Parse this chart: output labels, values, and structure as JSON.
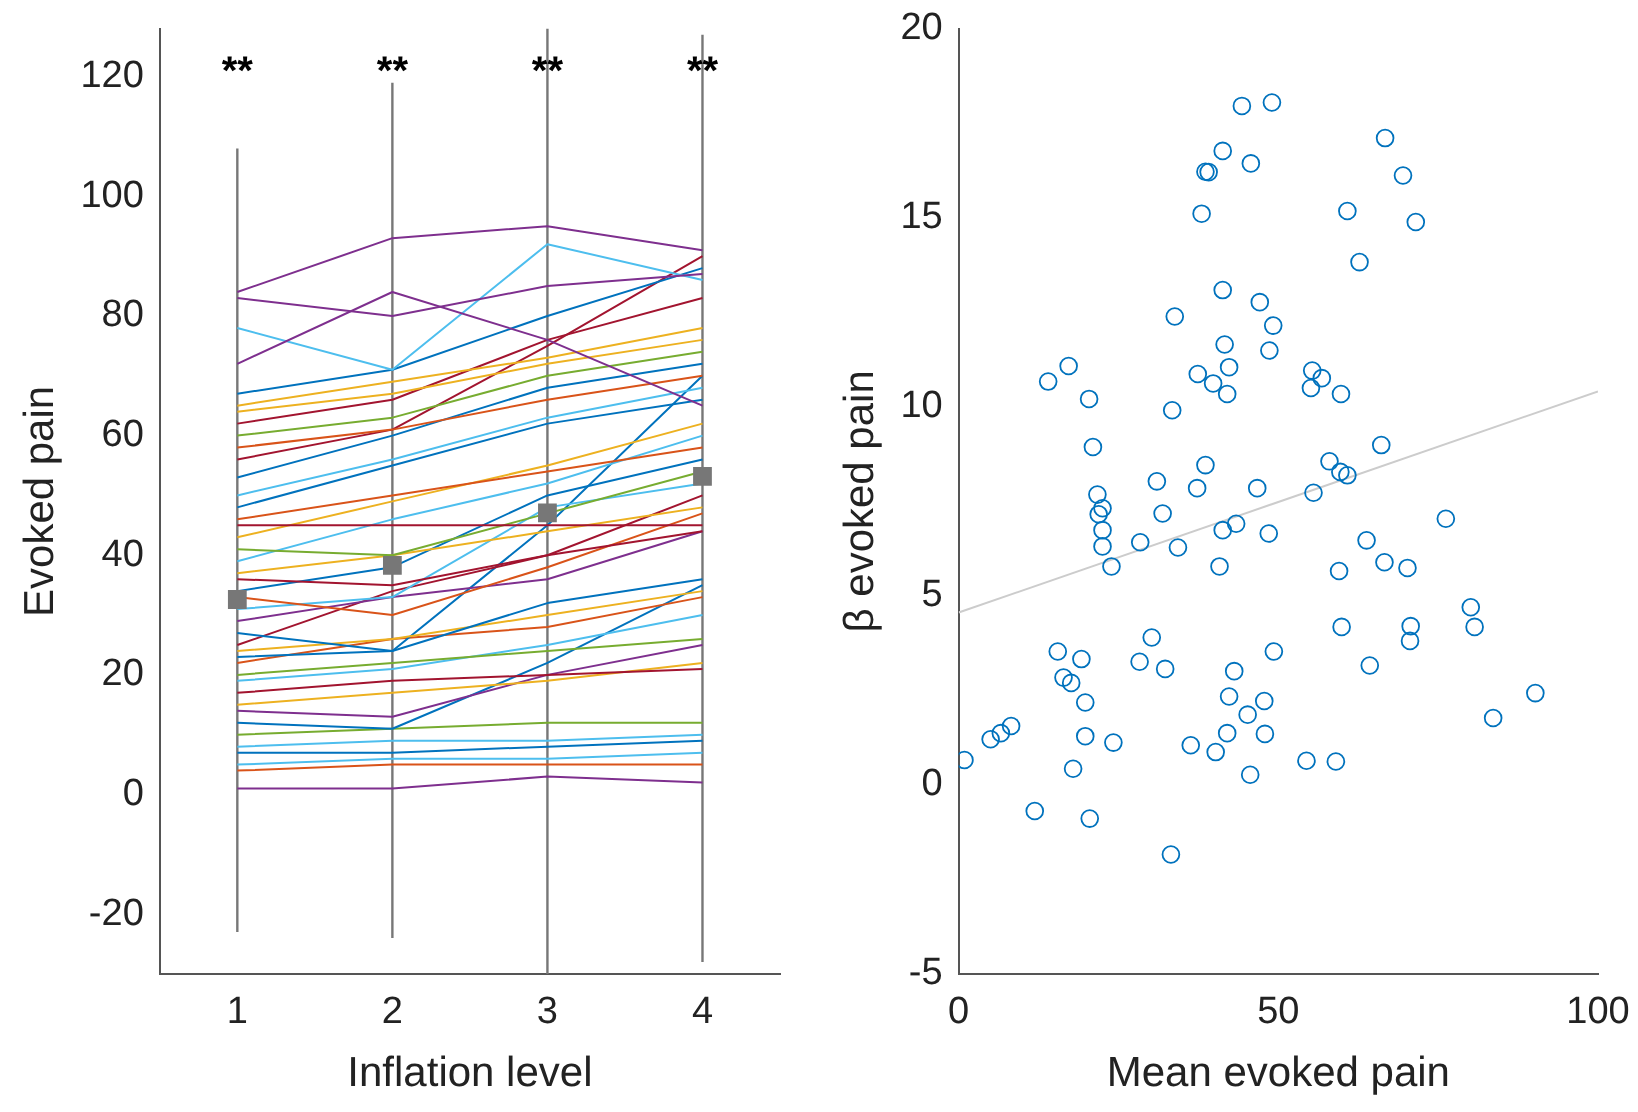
{
  "chart_data": [
    {
      "type": "line",
      "xlabel": "Inflation level",
      "ylabel": "Evoked pain",
      "categories": [
        "1",
        "2",
        "3",
        "4"
      ],
      "ylim": [
        -30,
        128
      ],
      "yticks": [
        -20,
        0,
        20,
        40,
        60,
        80,
        100,
        120
      ],
      "grid": false,
      "annotations": [
        "**",
        "**",
        "**",
        "**"
      ],
      "series": [
        {
          "color": "#7e2f8e",
          "values": [
            84,
            93,
            95,
            91
          ]
        },
        {
          "color": "#7e2f8e",
          "values": [
            83,
            80,
            85,
            87
          ]
        },
        {
          "color": "#7e2f8e",
          "values": [
            72,
            84,
            76,
            65
          ]
        },
        {
          "color": "#4dbeee",
          "values": [
            78,
            71,
            92,
            86
          ]
        },
        {
          "color": "#0072bd",
          "values": [
            67,
            71,
            80,
            88
          ]
        },
        {
          "color": "#edb120",
          "values": [
            65,
            69,
            73,
            78
          ]
        },
        {
          "color": "#edb120",
          "values": [
            64,
            67,
            72,
            76
          ]
        },
        {
          "color": "#a2142f",
          "values": [
            62,
            66,
            76,
            83
          ]
        },
        {
          "color": "#77ac30",
          "values": [
            60,
            63,
            70,
            74
          ]
        },
        {
          "color": "#d95319",
          "values": [
            58,
            61,
            66,
            70
          ]
        },
        {
          "color": "#a2142f",
          "values": [
            56,
            61,
            75,
            90
          ]
        },
        {
          "color": "#0072bd",
          "values": [
            53,
            60,
            68,
            72
          ]
        },
        {
          "color": "#4dbeee",
          "values": [
            50,
            56,
            63,
            68
          ]
        },
        {
          "color": "#0072bd",
          "values": [
            48,
            55,
            62,
            66
          ]
        },
        {
          "color": "#d95319",
          "values": [
            46,
            50,
            54,
            58
          ]
        },
        {
          "color": "#a2142f",
          "values": [
            45,
            45,
            45,
            45
          ]
        },
        {
          "color": "#edb120",
          "values": [
            43,
            49,
            55,
            62
          ]
        },
        {
          "color": "#77ac30",
          "values": [
            41,
            40,
            47,
            54
          ]
        },
        {
          "color": "#4dbeee",
          "values": [
            39,
            46,
            52,
            60
          ]
        },
        {
          "color": "#edb120",
          "values": [
            37,
            40,
            44,
            48
          ]
        },
        {
          "color": "#a2142f",
          "values": [
            36,
            35,
            40,
            44
          ]
        },
        {
          "color": "#0072bd",
          "values": [
            34,
            38,
            50,
            56
          ]
        },
        {
          "color": "#d95319",
          "values": [
            33,
            30,
            38,
            47
          ]
        },
        {
          "color": "#4dbeee",
          "values": [
            31,
            33,
            48,
            52
          ]
        },
        {
          "color": "#7e2f8e",
          "values": [
            29,
            33,
            36,
            44
          ]
        },
        {
          "color": "#0072bd",
          "values": [
            27,
            24,
            32,
            36
          ]
        },
        {
          "color": "#a2142f",
          "values": [
            25,
            34,
            40,
            50
          ]
        },
        {
          "color": "#edb120",
          "values": [
            24,
            26,
            30,
            34
          ]
        },
        {
          "color": "#0072bd",
          "values": [
            23,
            24,
            45,
            70
          ]
        },
        {
          "color": "#d95319",
          "values": [
            22,
            26,
            28,
            33
          ]
        },
        {
          "color": "#77ac30",
          "values": [
            20,
            22,
            24,
            26
          ]
        },
        {
          "color": "#4dbeee",
          "values": [
            19,
            21,
            25,
            30
          ]
        },
        {
          "color": "#a2142f",
          "values": [
            17,
            19,
            20,
            21
          ]
        },
        {
          "color": "#edb120",
          "values": [
            15,
            17,
            19,
            22
          ]
        },
        {
          "color": "#7e2f8e",
          "values": [
            14,
            13,
            20,
            25
          ]
        },
        {
          "color": "#0072bd",
          "values": [
            12,
            11,
            22,
            35
          ]
        },
        {
          "color": "#77ac30",
          "values": [
            10,
            11,
            12,
            12
          ]
        },
        {
          "color": "#4dbeee",
          "values": [
            8,
            9,
            9,
            10
          ]
        },
        {
          "color": "#0072bd",
          "values": [
            7,
            7,
            8,
            9
          ]
        },
        {
          "color": "#4dbeee",
          "values": [
            5,
            6,
            6,
            7
          ]
        },
        {
          "color": "#d95319",
          "values": [
            4,
            5,
            5,
            5
          ]
        },
        {
          "color": "#7e2f8e",
          "values": [
            1,
            1,
            3,
            2
          ]
        },
        {
          "type": "scatter",
          "color": "#777777",
          "marker": "square",
          "x": [
            "1",
            "2",
            "3",
            "4"
          ],
          "values": [
            32.6,
            38.3,
            47.1,
            53.2
          ],
          "errors": [
            [
              -23,
              108
            ],
            [
              -24,
              119
            ],
            [
              -30,
              128
            ],
            [
              -28,
              127
            ]
          ]
        }
      ]
    },
    {
      "type": "scatter",
      "xlabel": "Mean evoked pain",
      "ylabel": "β evoked pain",
      "xlim": [
        0,
        100
      ],
      "xticks": [
        0,
        50,
        100
      ],
      "ylim": [
        -5,
        20
      ],
      "yticks": [
        -5,
        0,
        5,
        10,
        15,
        20
      ],
      "grid": false,
      "marker": "circle",
      "series": [
        {
          "color": "#0072bd",
          "x": [
            14.0,
            17.2,
            20.4,
            21.0,
            21.7,
            22.5,
            21.9,
            22.5,
            22.5,
            23.9,
            28.4,
            31.0,
            31.9,
            34.3,
            33.4,
            33.8,
            37.4,
            37.3,
            38.6,
            38.0,
            38.6,
            39.1,
            40.8,
            39.8,
            41.3,
            41.3,
            41.6,
            42.3,
            42.0,
            41.3,
            43.4,
            44.3,
            45.7,
            46.7,
            47.1,
            48.5,
            48.6,
            49.2,
            49.0,
            55.3,
            55.1,
            56.8,
            59.8,
            55.5,
            58.0,
            59.7,
            60.8,
            59.5,
            60.8,
            62.7,
            63.8,
            66.1,
            66.6,
            66.7,
            69.5,
            70.2,
            71.5,
            76.2,
            0.9,
            5.0,
            6.6,
            8.2,
            11.9,
            15.5,
            16.4,
            17.6,
            19.2,
            19.8,
            19.8,
            17.9,
            20.5,
            24.2,
            28.3,
            30.2,
            32.3,
            33.2,
            36.3,
            40.2,
            42.0,
            42.3,
            43.1,
            45.2,
            45.6,
            47.8,
            47.9,
            49.3,
            54.4,
            59.0,
            59.9,
            64.3,
            70.7,
            70.6,
            80.1,
            80.7,
            83.6,
            90.2
          ],
          "values": [
            10.67,
            11.08,
            10.21,
            8.94,
            7.68,
            7.32,
            7.16,
            6.74,
            6.31,
            5.78,
            6.42,
            8.03,
            7.18,
            6.28,
            9.91,
            12.39,
            10.87,
            7.85,
            8.46,
            15.11,
            16.22,
            16.21,
            5.78,
            10.62,
            16.77,
            13.09,
            11.65,
            11.05,
            10.34,
            6.74,
            6.91,
            17.96,
            16.44,
            7.85,
            12.77,
            6.65,
            11.49,
            12.15,
            18.05,
            10.96,
            10.5,
            10.76,
            10.34,
            7.73,
            8.56,
            8.28,
            8.19,
            5.66,
            15.18,
            13.83,
            6.47,
            8.99,
            5.89,
            17.11,
            16.12,
            5.74,
            14.89,
            7.04,
            0.66,
            1.21,
            1.37,
            1.56,
            -0.69,
            3.53,
            2.84,
            2.7,
            3.33,
            2.18,
            1.29,
            0.43,
            -0.89,
            1.12,
            3.26,
            3.9,
            3.07,
            -1.84,
            1.05,
            0.87,
            1.37,
            2.34,
            3.01,
            1.86,
            0.27,
            2.22,
            1.35,
            3.53,
            0.64,
            0.62,
            4.18,
            3.16,
            4.2,
            3.81,
            4.7,
            4.18,
            1.77,
            2.43
          ]
        },
        {
          "type": "line",
          "color": "#cccccc",
          "marker": "none",
          "x": [
            0,
            100
          ],
          "values": [
            4.56,
            10.41
          ]
        }
      ]
    }
  ]
}
